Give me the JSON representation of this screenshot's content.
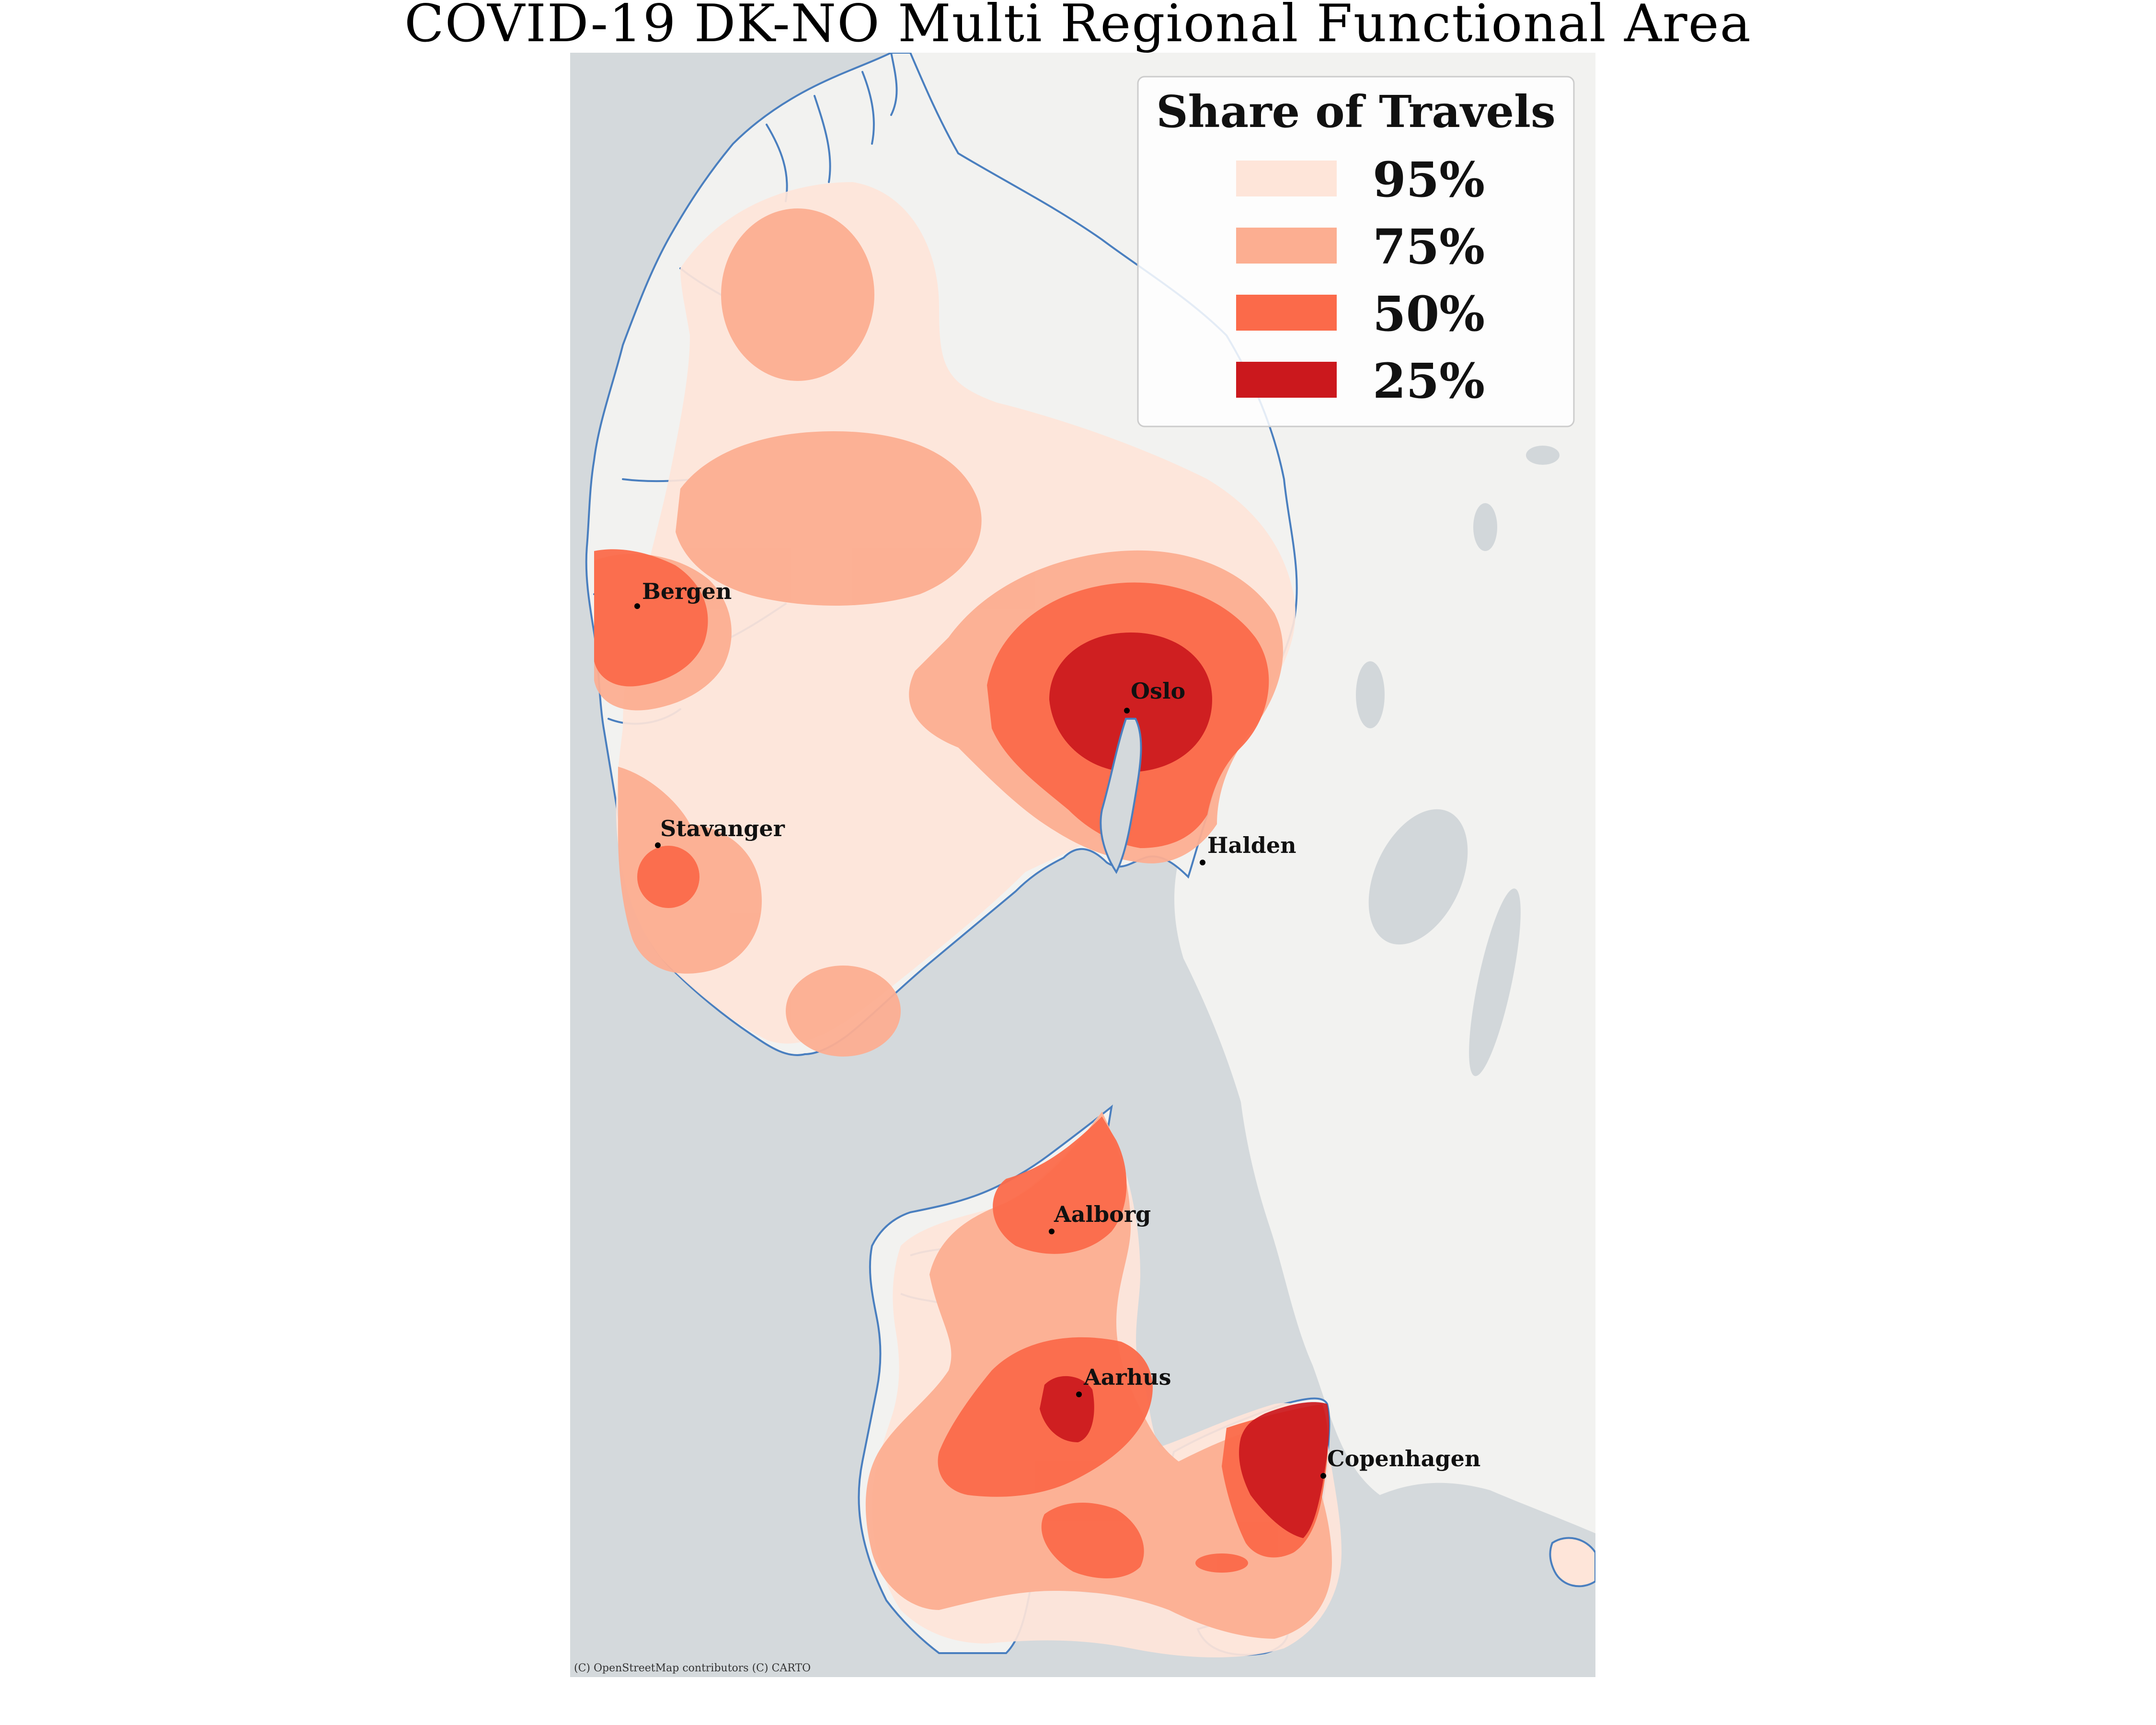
{
  "title": "COVID-19 DK-NO Multi Regional Functional Area",
  "attribution": "(C) OpenStreetMap contributors (C) CARTO",
  "legend": {
    "title": "Share of Travels",
    "items": [
      {
        "label": "95%",
        "color": "#fee5d9"
      },
      {
        "label": "75%",
        "color": "#fcae91"
      },
      {
        "label": "50%",
        "color": "#fb6a4a"
      },
      {
        "label": "25%",
        "color": "#cb181d"
      }
    ]
  },
  "colors": {
    "sea": "#d4d9dc",
    "land": "#f2f2f0",
    "coastline": "#4a7fbf",
    "lakes": "#d2d7da"
  },
  "cities": [
    {
      "name": "Bergen"
    },
    {
      "name": "Oslo"
    },
    {
      "name": "Stavanger"
    },
    {
      "name": "Halden"
    },
    {
      "name": "Aalborg"
    },
    {
      "name": "Aarhus"
    },
    {
      "name": "Copenhagen"
    }
  ]
}
